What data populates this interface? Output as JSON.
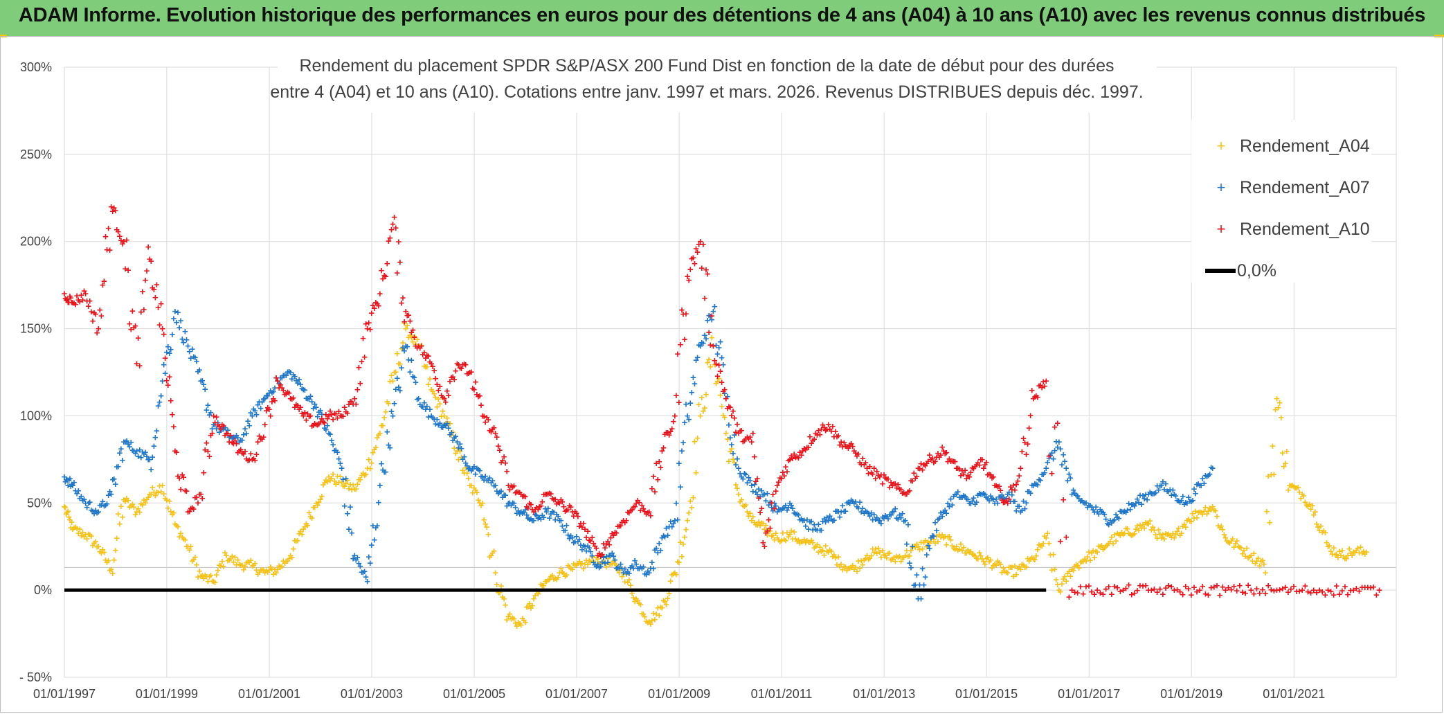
{
  "banner": {
    "title": "ADAM Informe. Evolution historique des performances en euros pour des détentions de 4 ans (A04) à 10 ans (A10) avec les revenus connus distribués"
  },
  "colors": {
    "banner_bg": "#7fcd7a",
    "A04": "#f5c21a",
    "A07": "#1f77c8",
    "A10": "#e8141c",
    "zero_line": "#000000",
    "grid": "#d9d9d9"
  },
  "chart_data": {
    "type": "scatter",
    "title_lines": [
      "Rendement du placement SPDR S&P/ASX 200 Fund Dist en fonction de la date de début pour des durées",
      "entre 4 (A04) et 10 ans (A10). Cotations entre janv. 1997 et mars. 2026. Revenus DISTRIBUES depuis déc. 1997."
    ],
    "x_axis": {
      "type": "date",
      "range": [
        "1997-01-01",
        "2022-12-31"
      ],
      "tick_labels": [
        "01/01/1997",
        "01/01/1999",
        "01/01/2001",
        "01/01/2003",
        "01/01/2005",
        "01/01/2007",
        "01/01/2009",
        "01/01/2011",
        "01/01/2013",
        "01/01/2015",
        "01/01/2017",
        "01/01/2019",
        "01/01/2021"
      ]
    },
    "y_axis": {
      "unit": "percent",
      "range": [
        -50,
        300
      ],
      "tick_values": [
        -50,
        0,
        50,
        100,
        150,
        200,
        250,
        300
      ],
      "tick_labels": [
        "- 50%",
        "0%",
        "50%",
        "100%",
        "150%",
        "200%",
        "250%",
        "300%"
      ]
    },
    "grid": true,
    "legend_position": "top-right",
    "legend": [
      "Rendement_A04",
      "Rendement_A07",
      "Rendement_A10",
      "0,0%"
    ],
    "reference_line": {
      "name": "0,0%",
      "value": 0,
      "from": "1997-01-01",
      "to": "2016-03-01"
    },
    "series": [
      {
        "name": "Rendement_A04",
        "marker": "+",
        "x": [
          "1997-01-01",
          "1997-03-01",
          "1997-06-01",
          "1997-09-01",
          "1997-12-01",
          "1998-03-01",
          "1998-06-01",
          "1998-09-01",
          "1998-12-01",
          "1999-03-01",
          "1999-06-01",
          "1999-09-01",
          "1999-12-01",
          "2000-03-01",
          "2000-06-01",
          "2000-09-01",
          "2000-12-01",
          "2001-03-01",
          "2001-06-01",
          "2001-09-01",
          "2001-12-01",
          "2002-03-01",
          "2002-06-01",
          "2002-09-01",
          "2002-12-01",
          "2003-03-01",
          "2003-06-01",
          "2003-09-01",
          "2003-12-01",
          "2004-03-01",
          "2004-06-01",
          "2004-09-01",
          "2004-12-01",
          "2005-03-01",
          "2005-06-01",
          "2005-09-01",
          "2005-12-01",
          "2006-03-01",
          "2006-06-01",
          "2006-09-01",
          "2006-12-01",
          "2007-03-01",
          "2007-06-01",
          "2007-09-01",
          "2007-12-01",
          "2008-03-01",
          "2008-06-01",
          "2008-09-01",
          "2008-12-01",
          "2009-03-01",
          "2009-06-01",
          "2009-09-01",
          "2009-12-01",
          "2010-03-01",
          "2010-06-01",
          "2010-09-01",
          "2010-12-01",
          "2011-03-01",
          "2011-06-01",
          "2011-09-01",
          "2011-12-01",
          "2012-03-01",
          "2012-06-01",
          "2012-09-01",
          "2012-12-01",
          "2013-03-01",
          "2013-06-01",
          "2013-09-01",
          "2013-12-01",
          "2014-03-01",
          "2014-06-01",
          "2014-09-01",
          "2014-12-01",
          "2015-03-01",
          "2015-06-01",
          "2015-09-01",
          "2015-12-01",
          "2016-03-01",
          "2016-06-01",
          "2016-09-01",
          "2016-12-01",
          "2017-03-01",
          "2017-06-01",
          "2017-09-01",
          "2017-12-01",
          "2018-03-01",
          "2018-06-01",
          "2018-09-01",
          "2018-12-01",
          "2019-03-01",
          "2019-06-01",
          "2019-09-01",
          "2019-12-01",
          "2020-03-01",
          "2020-06-01",
          "2020-09-01",
          "2020-12-01",
          "2021-03-01",
          "2021-06-01",
          "2021-09-01",
          "2021-12-01",
          "2022-03-01",
          "2022-06-01"
        ],
        "y": [
          48,
          35,
          32,
          25,
          12,
          52,
          45,
          55,
          60,
          38,
          25,
          8,
          5,
          20,
          15,
          14,
          10,
          12,
          20,
          35,
          50,
          65,
          62,
          58,
          70,
          90,
          120,
          150,
          140,
          115,
          100,
          80,
          60,
          50,
          10,
          -15,
          -20,
          -5,
          5,
          10,
          12,
          15,
          18,
          15,
          10,
          -5,
          -18,
          -10,
          10,
          40,
          100,
          140,
          90,
          55,
          40,
          35,
          30,
          32,
          28,
          25,
          22,
          15,
          12,
          20,
          22,
          18,
          20,
          25,
          28,
          30,
          25,
          22,
          18,
          15,
          10,
          12,
          18,
          30,
          0,
          12,
          18,
          22,
          28,
          32,
          35,
          38,
          30,
          30,
          40,
          45,
          48,
          30,
          25,
          20,
          15,
          110,
          60,
          55,
          45,
          25,
          20,
          22,
          22
        ]
      },
      {
        "name": "Rendement_A07",
        "marker": "+",
        "x": [
          "1997-01-01",
          "1997-03-01",
          "1997-06-01",
          "1997-09-01",
          "1997-12-01",
          "1998-03-01",
          "1998-06-01",
          "1998-09-01",
          "1998-12-01",
          "1999-03-01",
          "1999-06-01",
          "1999-09-01",
          "1999-12-01",
          "2000-03-01",
          "2000-06-01",
          "2000-09-01",
          "2000-12-01",
          "2001-03-01",
          "2001-06-01",
          "2001-09-01",
          "2001-12-01",
          "2002-03-01",
          "2002-06-01",
          "2002-09-01",
          "2002-12-01",
          "2003-03-01",
          "2003-06-01",
          "2003-09-01",
          "2003-12-01",
          "2004-03-01",
          "2004-06-01",
          "2004-09-01",
          "2004-12-01",
          "2005-03-01",
          "2005-06-01",
          "2005-09-01",
          "2005-12-01",
          "2006-03-01",
          "2006-06-01",
          "2006-09-01",
          "2006-12-01",
          "2007-03-01",
          "2007-06-01",
          "2007-09-01",
          "2007-12-01",
          "2008-03-01",
          "2008-06-01",
          "2008-09-01",
          "2008-12-01",
          "2009-03-01",
          "2009-06-01",
          "2009-09-01",
          "2009-12-01",
          "2010-03-01",
          "2010-06-01",
          "2010-09-01",
          "2010-12-01",
          "2011-03-01",
          "2011-06-01",
          "2011-09-01",
          "2011-12-01",
          "2012-03-01",
          "2012-06-01",
          "2012-09-01",
          "2012-12-01",
          "2013-03-01",
          "2013-06-01",
          "2013-09-01",
          "2013-12-01",
          "2014-03-01",
          "2014-06-01",
          "2014-09-01",
          "2014-12-01",
          "2015-03-01",
          "2015-06-01",
          "2015-09-01",
          "2015-12-01",
          "2016-03-01",
          "2016-06-01",
          "2016-09-01",
          "2016-12-01",
          "2017-03-01",
          "2017-06-01",
          "2017-09-01",
          "2017-12-01",
          "2018-03-01",
          "2018-06-01",
          "2018-09-01",
          "2018-12-01",
          "2019-03-01",
          "2019-06-01"
        ],
        "y": [
          65,
          60,
          50,
          45,
          55,
          85,
          80,
          75,
          120,
          160,
          140,
          120,
          95,
          90,
          85,
          100,
          110,
          120,
          125,
          115,
          105,
          90,
          70,
          20,
          5,
          60,
          100,
          140,
          110,
          100,
          95,
          85,
          70,
          65,
          60,
          50,
          45,
          40,
          45,
          40,
          30,
          25,
          15,
          20,
          10,
          15,
          10,
          30,
          40,
          100,
          140,
          160,
          110,
          70,
          60,
          55,
          45,
          50,
          40,
          35,
          40,
          45,
          50,
          45,
          40,
          45,
          40,
          -5,
          30,
          45,
          55,
          50,
          55,
          50,
          55,
          45,
          60,
          70,
          85,
          55,
          50,
          45,
          40,
          45,
          50,
          55,
          60,
          55,
          50,
          60,
          70
        ]
      },
      {
        "name": "Rendement_A10",
        "marker": "+",
        "x": [
          "1997-01-01",
          "1997-03-01",
          "1997-06-01",
          "1997-09-01",
          "1997-12-01",
          "1998-03-01",
          "1998-06-01",
          "1998-09-01",
          "1998-12-01",
          "1999-03-01",
          "1999-06-01",
          "1999-09-01",
          "1999-12-01",
          "2000-03-01",
          "2000-06-01",
          "2000-09-01",
          "2000-12-01",
          "2001-03-01",
          "2001-06-01",
          "2001-09-01",
          "2001-12-01",
          "2002-03-01",
          "2002-06-01",
          "2002-09-01",
          "2002-12-01",
          "2003-03-01",
          "2003-06-01",
          "2003-09-01",
          "2003-12-01",
          "2004-03-01",
          "2004-06-01",
          "2004-09-01",
          "2004-12-01",
          "2005-03-01",
          "2005-06-01",
          "2005-09-01",
          "2005-12-01",
          "2006-03-01",
          "2006-06-01",
          "2006-09-01",
          "2006-12-01",
          "2007-03-01",
          "2007-06-01",
          "2007-09-01",
          "2007-12-01",
          "2008-03-01",
          "2008-06-01",
          "2008-09-01",
          "2008-12-01",
          "2009-03-01",
          "2009-06-01",
          "2009-09-01",
          "2009-12-01",
          "2010-03-01",
          "2010-06-01",
          "2010-09-01",
          "2010-12-01",
          "2011-03-01",
          "2011-06-01",
          "2011-09-01",
          "2011-12-01",
          "2012-03-01",
          "2012-06-01",
          "2012-09-01",
          "2012-12-01",
          "2013-03-01",
          "2013-06-01",
          "2013-09-01",
          "2013-12-01",
          "2014-03-01",
          "2014-06-01",
          "2014-09-01",
          "2014-12-01",
          "2015-03-01",
          "2015-06-01",
          "2015-09-01",
          "2015-12-01",
          "2016-03-01",
          "2016-09-01",
          "2017-03-01",
          "2017-09-01",
          "2018-03-01",
          "2018-09-01",
          "2019-03-01",
          "2019-09-01",
          "2020-03-01",
          "2020-09-01",
          "2021-03-01",
          "2021-09-01",
          "2022-03-01",
          "2022-09-01"
        ],
        "y": [
          170,
          165,
          170,
          150,
          220,
          200,
          130,
          190,
          150,
          80,
          45,
          55,
          100,
          90,
          80,
          75,
          95,
          120,
          110,
          100,
          95,
          100,
          100,
          110,
          150,
          170,
          210,
          160,
          140,
          130,
          110,
          130,
          125,
          100,
          90,
          60,
          55,
          45,
          55,
          50,
          45,
          35,
          20,
          30,
          40,
          50,
          45,
          80,
          100,
          180,
          200,
          140,
          110,
          90,
          85,
          25,
          60,
          75,
          80,
          90,
          95,
          85,
          80,
          70,
          65,
          60,
          55,
          70,
          75,
          80,
          70,
          65,
          75,
          60,
          50,
          70,
          110,
          120,
          0,
          0,
          0,
          0,
          0,
          0,
          0,
          0,
          0,
          0,
          0,
          0,
          0
        ]
      }
    ]
  }
}
